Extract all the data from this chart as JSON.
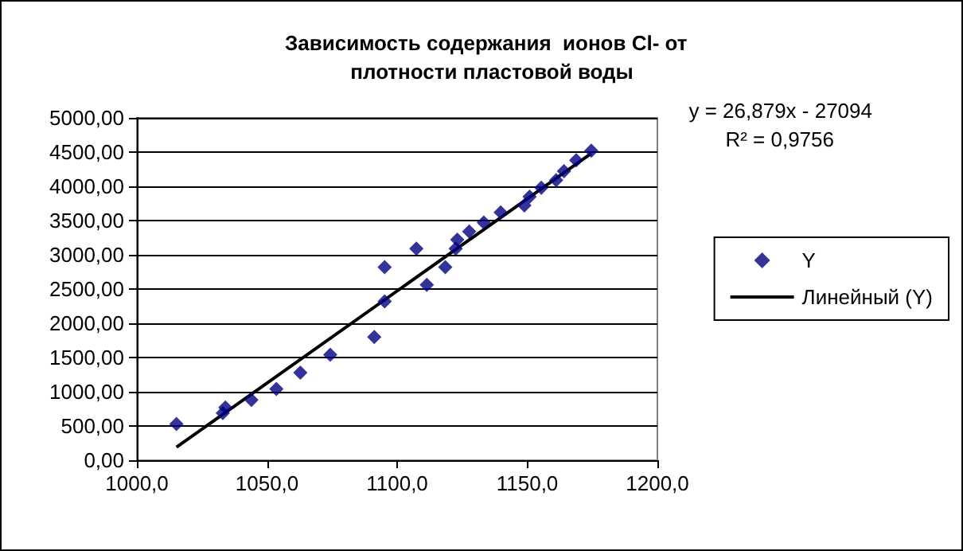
{
  "chart_data": {
    "type": "scatter",
    "title": "Зависимость содержания  ионов Cl- от  плотности пластовой воды",
    "series": [
      {
        "name": "Y",
        "color": "#000080",
        "marker": "diamond",
        "x": [
          1015.2,
          1033.0,
          1034.0,
          1044.0,
          1053.6,
          1062.8,
          1074.3,
          1091.2,
          1095.2,
          1095.2,
          1107.4,
          1111.4,
          1118.5,
          1122.5,
          1123.1,
          1127.7,
          1133.3,
          1139.8,
          1148.9,
          1150.9,
          1155.4,
          1161.1,
          1164.1,
          1168.8,
          1174.6
        ],
        "values": [
          530,
          690,
          770,
          880,
          1040,
          1280,
          1540,
          1800,
          2820,
          2320,
          3090,
          2560,
          2820,
          3090,
          3220,
          3340,
          3470,
          3620,
          3720,
          3850,
          3980,
          4090,
          4220,
          4380,
          4520
        ]
      },
      {
        "name": "Линейный (Y)",
        "type": "line",
        "color": "#000000",
        "marker": "none",
        "line_style": "solid",
        "x": [
          1015.2,
          1174.6
        ],
        "values": [
          190,
          4480
        ]
      }
    ],
    "xlim": [
      1000,
      1200
    ],
    "xticks": [
      {
        "value": 1000,
        "label": "1000,0"
      },
      {
        "value": 1050,
        "label": "1050,0"
      },
      {
        "value": 1100,
        "label": "1100,0"
      },
      {
        "value": 1150,
        "label": "1150,0"
      },
      {
        "value": 1200,
        "label": "1200,0"
      }
    ],
    "ylim": [
      0,
      5000
    ],
    "yticks": [
      {
        "value": 0,
        "label": "0,00"
      },
      {
        "value": 500,
        "label": "500,00"
      },
      {
        "value": 1000,
        "label": "1000,00"
      },
      {
        "value": 1500,
        "label": "1500,00"
      },
      {
        "value": 2000,
        "label": "2000,00"
      },
      {
        "value": 2500,
        "label": "2500,00"
      },
      {
        "value": 3000,
        "label": "3000,00"
      },
      {
        "value": 3500,
        "label": "3500,00"
      },
      {
        "value": 4000,
        "label": "4000,00"
      },
      {
        "value": 4500,
        "label": "4500,00"
      },
      {
        "value": 5000,
        "label": "5000,00"
      }
    ],
    "grid": "y",
    "legend": "right",
    "annotations": [
      "y = 26,879x - 27094",
      "R² = 0,9756"
    ]
  }
}
